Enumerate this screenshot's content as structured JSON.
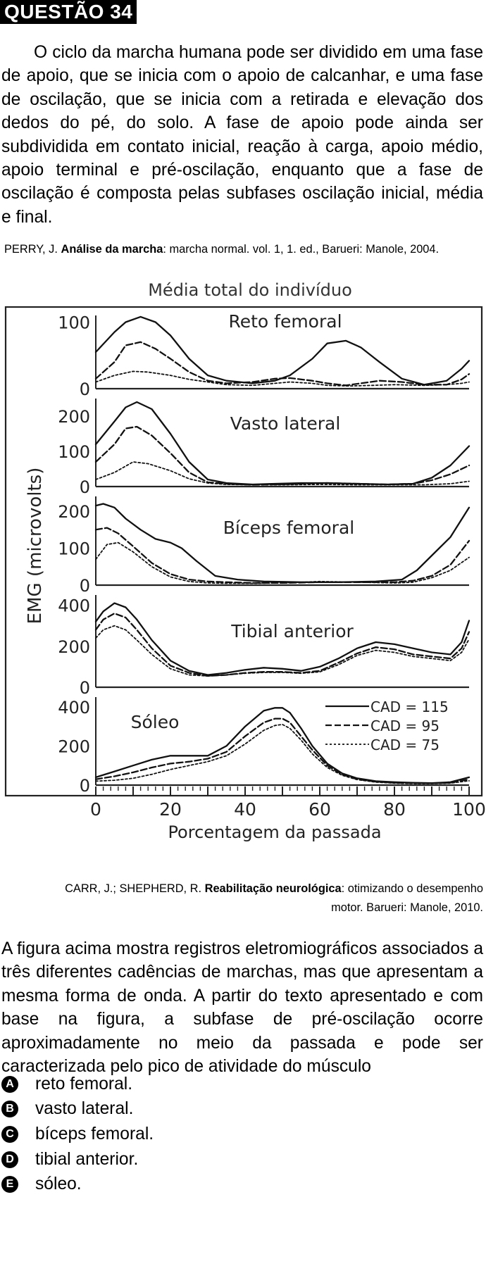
{
  "question": {
    "tag": "QUESTÃO 34",
    "paragraph": "O ciclo da marcha humana pode ser dividido em uma fase de apoio, que se inicia com o apoio de calcanhar, e uma fase de oscilação, que se inicia com a retirada e elevação dos dedos do pé, do solo. A fase de apoio pode ainda ser subdividida em contato inicial, reação à carga, apoio médio, apoio terminal e pré-oscilação, enquanto que a fase de oscilação é composta pelas subfases oscilação inicial, média e final.",
    "ref1": {
      "authors": "PERRY, J. ",
      "title": "Análise da marcha",
      "rest": ": marcha normal. vol. 1, 1. ed., Barueri: Manole, 2004."
    },
    "ref2": {
      "authors": "CARR, J.; SHEPHERD, R. ",
      "title": "Reabilitação neurológica",
      "rest": ": otimizando o desempenho motor. Barueri: Manole, 2010."
    },
    "statement": "A figura acima mostra registros eletromiográficos associados a três diferentes cadências de marchas, mas que apresentam a mesma forma de onda. A partir do texto apresentado e com base na figura, a subfase de pré-oscilação ocorre aproximadamente no meio da passada e pode ser caracterizada pelo pico de atividade do músculo",
    "options": [
      {
        "letter": "A",
        "text": "reto femoral."
      },
      {
        "letter": "B",
        "text": "vasto lateral."
      },
      {
        "letter": "C",
        "text": "bíceps femoral."
      },
      {
        "letter": "D",
        "text": "tibial anterior."
      },
      {
        "letter": "E",
        "text": "sóleo."
      }
    ]
  },
  "chart_data": {
    "type": "line",
    "title": "Média total do indivíduo",
    "xlabel": "Porcentagem da passada",
    "ylabel": "EMG (microvolts)",
    "xlim": [
      0,
      100
    ],
    "x_ticks": [
      "0",
      "20",
      "40",
      "60",
      "80",
      "100"
    ],
    "legend": {
      "placement": "inside-bottom-right",
      "entries": [
        {
          "label": "CAD = 115",
          "style": "solid"
        },
        {
          "label": "CAD = 95",
          "style": "dashed"
        },
        {
          "label": "CAD = 75",
          "style": "dotted"
        }
      ]
    },
    "panels": [
      {
        "name": "Reto femoral",
        "ylim": [
          0,
          110
        ],
        "y_ticks": [
          {
            "v": 0,
            "t": "0"
          },
          {
            "v": 100,
            "t": "100"
          }
        ],
        "series": [
          {
            "name": "CAD = 115",
            "x": [
              0,
              5,
              8,
              12,
              16,
              20,
              25,
              30,
              35,
              42,
              48,
              52,
              58,
              62,
              67,
              71,
              76,
              82,
              88,
              94,
              98,
              100
            ],
            "y": [
              55,
              85,
              100,
              108,
              100,
              80,
              45,
              20,
              12,
              8,
              12,
              20,
              45,
              68,
              72,
              62,
              40,
              15,
              6,
              12,
              30,
              42
            ]
          },
          {
            "name": "CAD = 95",
            "x": [
              0,
              5,
              8,
              12,
              16,
              20,
              25,
              30,
              35,
              42,
              48,
              52,
              58,
              62,
              67,
              71,
              76,
              82,
              88,
              94,
              98,
              100
            ],
            "y": [
              15,
              40,
              65,
              70,
              60,
              45,
              25,
              12,
              8,
              10,
              15,
              16,
              12,
              8,
              5,
              8,
              12,
              10,
              6,
              6,
              14,
              22
            ]
          },
          {
            "name": "CAD = 75",
            "x": [
              0,
              5,
              10,
              14,
              20,
              25,
              30,
              35,
              42,
              48,
              52,
              58,
              62,
              68,
              74,
              80,
              88,
              94,
              98,
              100
            ],
            "y": [
              10,
              20,
              26,
              25,
              20,
              14,
              10,
              6,
              5,
              8,
              10,
              8,
              5,
              4,
              5,
              6,
              5,
              6,
              8,
              10
            ]
          }
        ]
      },
      {
        "name": "Vasto lateral",
        "ylim": [
          0,
          250
        ],
        "y_ticks": [
          {
            "v": 0,
            "t": "0"
          },
          {
            "v": 100,
            "t": "100"
          },
          {
            "v": 200,
            "t": "200"
          }
        ],
        "series": [
          {
            "name": "CAD = 115",
            "x": [
              0,
              5,
              8,
              11,
              15,
              20,
              25,
              30,
              35,
              42,
              48,
              55,
              62,
              70,
              78,
              85,
              90,
              95,
              100
            ],
            "y": [
              120,
              185,
              225,
              240,
              220,
              150,
              70,
              20,
              10,
              6,
              8,
              10,
              10,
              8,
              6,
              8,
              25,
              60,
              115
            ]
          },
          {
            "name": "CAD = 95",
            "x": [
              0,
              5,
              8,
              11,
              15,
              20,
              25,
              30,
              35,
              42,
              48,
              55,
              62,
              70,
              78,
              85,
              90,
              95,
              100
            ],
            "y": [
              70,
              120,
              165,
              170,
              145,
              95,
              40,
              12,
              8,
              5,
              6,
              8,
              10,
              8,
              6,
              8,
              18,
              35,
              60
            ]
          },
          {
            "name": "CAD = 75",
            "x": [
              0,
              5,
              10,
              14,
              20,
              25,
              30,
              35,
              42,
              50,
              60,
              70,
              80,
              88,
              95,
              100
            ],
            "y": [
              20,
              40,
              70,
              65,
              45,
              22,
              10,
              6,
              5,
              5,
              6,
              5,
              5,
              5,
              8,
              15
            ]
          }
        ]
      },
      {
        "name": "Bíceps femoral",
        "ylim": [
          0,
          240
        ],
        "y_ticks": [
          {
            "v": 0,
            "t": "0"
          },
          {
            "v": 100,
            "t": "100"
          },
          {
            "v": 200,
            "t": "200"
          }
        ],
        "series": [
          {
            "name": "CAD = 115",
            "x": [
              0,
              2,
              5,
              8,
              12,
              16,
              20,
              23,
              27,
              32,
              38,
              45,
              55,
              65,
              75,
              82,
              86,
              90,
              95,
              100
            ],
            "y": [
              215,
              220,
              210,
              180,
              150,
              125,
              115,
              100,
              65,
              25,
              15,
              10,
              8,
              8,
              10,
              15,
              40,
              80,
              130,
              210
            ]
          },
          {
            "name": "CAD = 95",
            "x": [
              0,
              3,
              6,
              10,
              15,
              20,
              25,
              30,
              35,
              42,
              50,
              60,
              70,
              80,
              85,
              90,
              95,
              100
            ],
            "y": [
              150,
              155,
              140,
              105,
              60,
              30,
              15,
              10,
              8,
              6,
              6,
              8,
              8,
              8,
              12,
              25,
              55,
              120
            ]
          },
          {
            "name": "CAD = 75",
            "x": [
              0,
              3,
              6,
              10,
              15,
              20,
              25,
              30,
              35,
              42,
              50,
              60,
              70,
              80,
              85,
              90,
              95,
              100
            ],
            "y": [
              70,
              110,
              115,
              90,
              50,
              22,
              10,
              6,
              5,
              5,
              6,
              10,
              8,
              6,
              8,
              20,
              40,
              75
            ]
          }
        ]
      },
      {
        "name": "Tibial anterior",
        "ylim": [
          0,
          450
        ],
        "y_ticks": [
          {
            "v": 0,
            "t": "0"
          },
          {
            "v": 200,
            "t": "200"
          },
          {
            "v": 400,
            "t": "400"
          }
        ],
        "series": [
          {
            "name": "CAD = 115",
            "x": [
              0,
              2,
              5,
              8,
              11,
              15,
              20,
              25,
              30,
              35,
              40,
              45,
              50,
              55,
              60,
              65,
              70,
              75,
              80,
              85,
              90,
              95,
              98,
              100
            ],
            "y": [
              320,
              370,
              410,
              390,
              330,
              230,
              130,
              80,
              60,
              70,
              85,
              95,
              90,
              80,
              100,
              140,
              190,
              220,
              210,
              190,
              170,
              160,
              220,
              325
            ]
          },
          {
            "name": "CAD = 95",
            "x": [
              0,
              2,
              5,
              8,
              11,
              15,
              20,
              25,
              30,
              35,
              40,
              45,
              50,
              55,
              60,
              65,
              70,
              75,
              80,
              85,
              90,
              95,
              98,
              100
            ],
            "y": [
              280,
              330,
              360,
              340,
              280,
              190,
              105,
              70,
              55,
              60,
              70,
              75,
              75,
              70,
              80,
              120,
              165,
              195,
              185,
              160,
              150,
              140,
              190,
              270
            ]
          },
          {
            "name": "CAD = 75",
            "x": [
              0,
              2,
              5,
              8,
              11,
              15,
              20,
              25,
              30,
              35,
              40,
              45,
              50,
              55,
              60,
              65,
              70,
              75,
              80,
              85,
              90,
              95,
              98,
              100
            ],
            "y": [
              240,
              280,
              300,
              280,
              230,
              160,
              90,
              60,
              55,
              60,
              68,
              72,
              72,
              68,
              75,
              110,
              155,
              180,
              170,
              150,
              140,
              130,
              170,
              235
            ]
          }
        ]
      },
      {
        "name": "Sóleo",
        "ylim": [
          0,
          450
        ],
        "y_ticks": [
          {
            "v": 0,
            "t": "0"
          },
          {
            "v": 200,
            "t": "200"
          },
          {
            "v": 400,
            "t": "400"
          }
        ],
        "series": [
          {
            "name": "CAD = 115",
            "x": [
              0,
              5,
              10,
              15,
              20,
              25,
              30,
              35,
              40,
              45,
              48,
              50,
              52,
              55,
              58,
              62,
              66,
              70,
              75,
              80,
              85,
              90,
              95,
              100
            ],
            "y": [
              40,
              70,
              100,
              130,
              150,
              150,
              150,
              200,
              300,
              380,
              395,
              395,
              370,
              290,
              200,
              110,
              60,
              35,
              20,
              15,
              12,
              10,
              15,
              40
            ]
          },
          {
            "name": "CAD = 95",
            "x": [
              0,
              5,
              10,
              15,
              20,
              25,
              30,
              35,
              40,
              45,
              48,
              50,
              52,
              55,
              58,
              62,
              66,
              70,
              75,
              80,
              85,
              90,
              95,
              100
            ],
            "y": [
              30,
              45,
              65,
              90,
              110,
              120,
              135,
              170,
              250,
              320,
              340,
              340,
              320,
              250,
              180,
              100,
              55,
              30,
              18,
              12,
              10,
              10,
              12,
              30
            ]
          },
          {
            "name": "CAD = 75",
            "x": [
              0,
              5,
              10,
              15,
              20,
              25,
              30,
              35,
              40,
              45,
              48,
              50,
              52,
              55,
              58,
              62,
              66,
              70,
              75,
              80,
              85,
              90,
              95,
              100
            ],
            "y": [
              20,
              25,
              35,
              55,
              80,
              100,
              120,
              150,
              210,
              280,
              305,
              310,
              290,
              230,
              160,
              90,
              50,
              28,
              15,
              10,
              8,
              8,
              10,
              22
            ]
          }
        ]
      }
    ]
  }
}
